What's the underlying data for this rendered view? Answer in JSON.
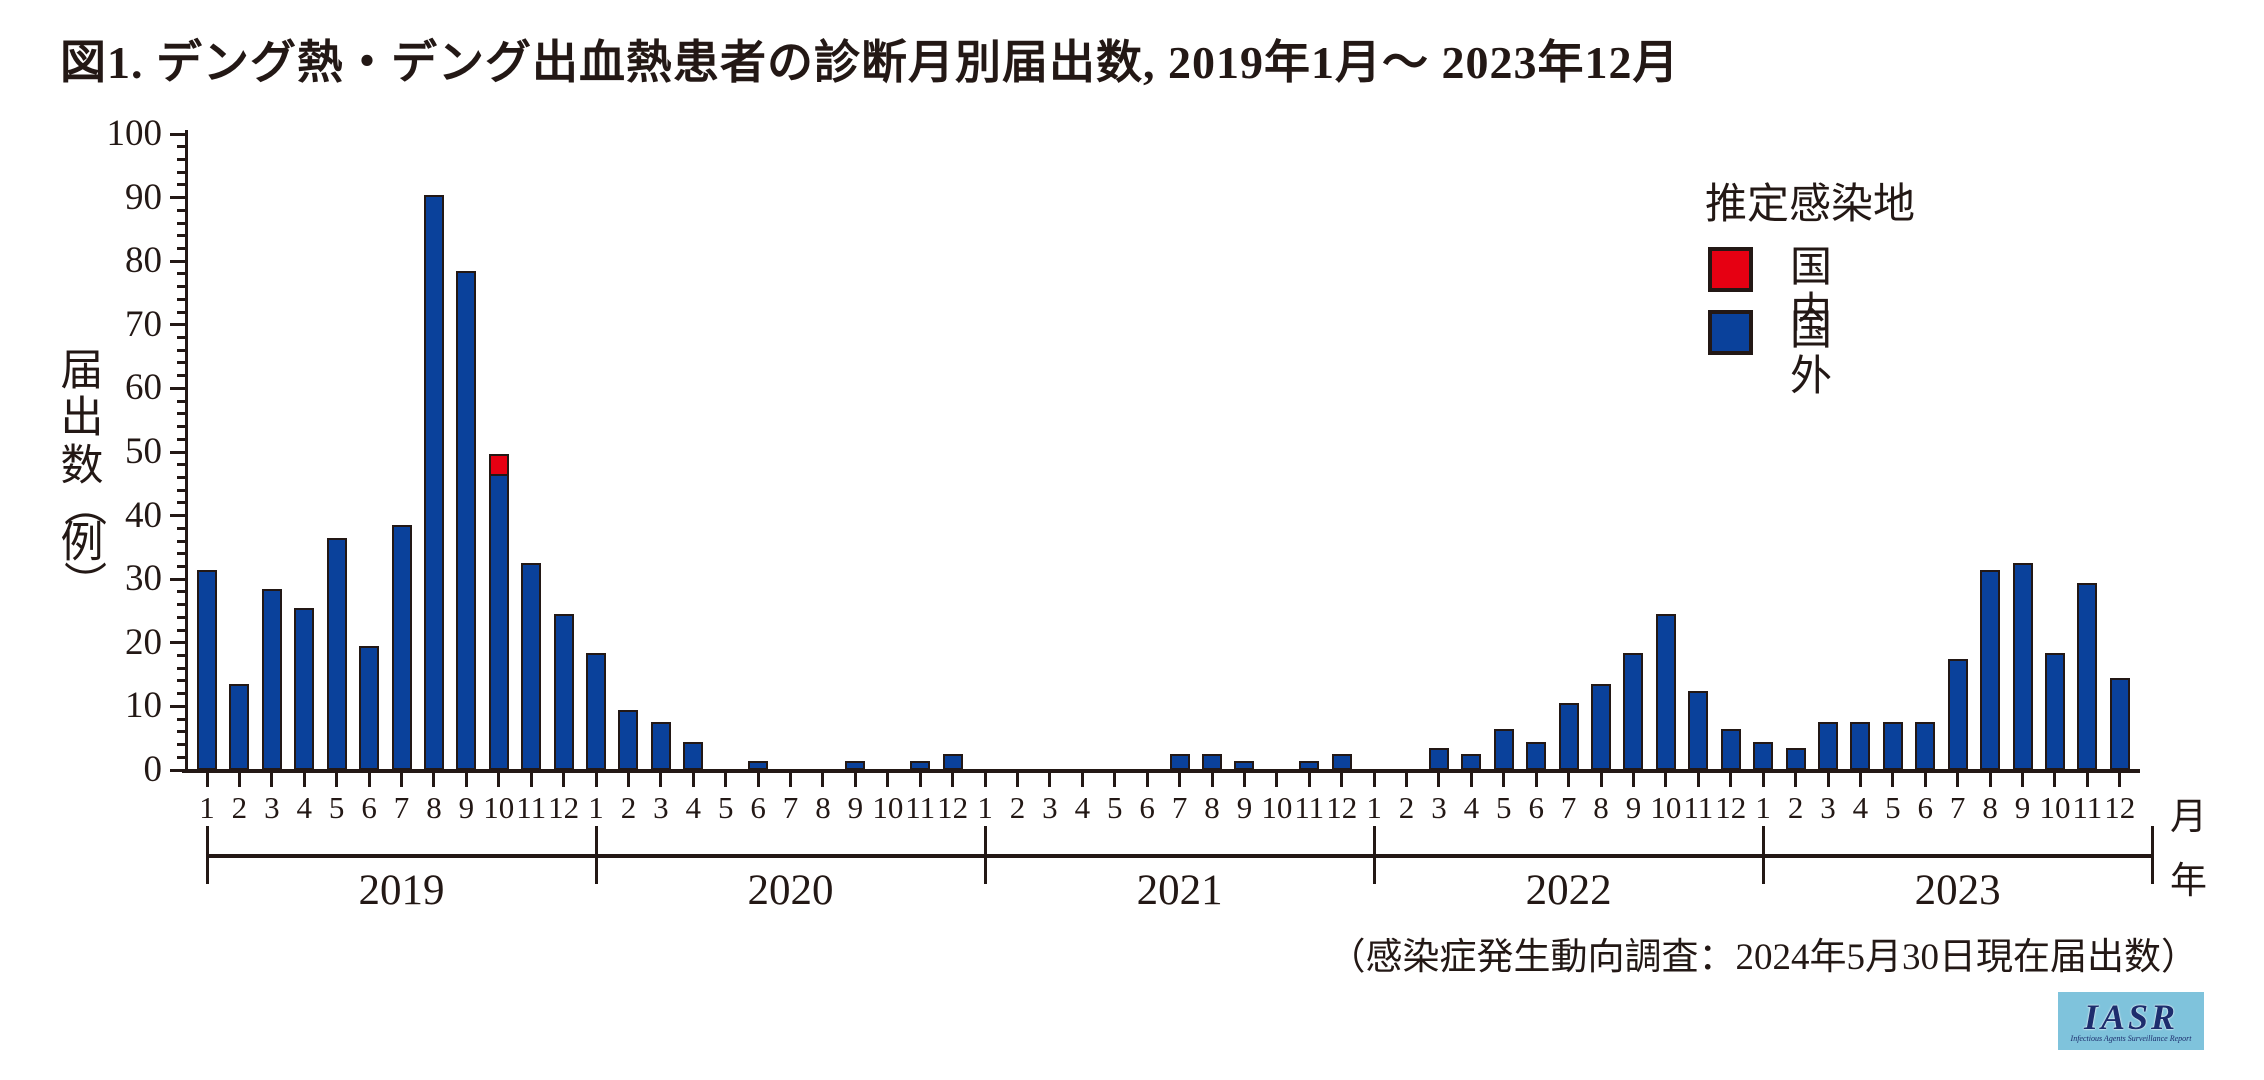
{
  "title": "図1. デング熱・デング出血熱患者の診断月別届出数, 2019年1月～ 2023年12月",
  "chart_data": {
    "type": "bar",
    "stacked": true,
    "title": "図1. デング熱・デング出血熱患者の診断月別届出数, 2019年1月～ 2023年12月",
    "ylabel": {
      "text": "届出数",
      "paren_open": "（",
      "unit": "例",
      "paren_close": "）"
    },
    "ylim": [
      0,
      100
    ],
    "ytick_major": 10,
    "ytick_minor": 2,
    "grid": false,
    "months": [
      "1",
      "2",
      "3",
      "4",
      "5",
      "6",
      "7",
      "8",
      "9",
      "10",
      "11",
      "12"
    ],
    "axis_unit_month": "月",
    "axis_unit_year": "年",
    "legend": {
      "title": "推定感染地",
      "items": [
        {
          "label": "国内",
          "color": "#e60012"
        },
        {
          "label": "国外",
          "color": "#0a419b"
        }
      ]
    },
    "years": [
      {
        "label": "2019",
        "imported": [
          31,
          13,
          28,
          25,
          36,
          19,
          38,
          90,
          78,
          46,
          32,
          24
        ],
        "domestic": [
          0,
          0,
          0,
          0,
          0,
          0,
          0,
          0,
          0,
          3,
          0,
          0
        ]
      },
      {
        "label": "2020",
        "imported": [
          18,
          9,
          7,
          4,
          0,
          1,
          0,
          0,
          1,
          0,
          1,
          2
        ],
        "domestic": [
          0,
          0,
          0,
          0,
          0,
          0,
          0,
          0,
          0,
          0,
          0,
          0
        ]
      },
      {
        "label": "2021",
        "imported": [
          0,
          0,
          0,
          0,
          0,
          0,
          2,
          2,
          1,
          0,
          1,
          2
        ],
        "domestic": [
          0,
          0,
          0,
          0,
          0,
          0,
          0,
          0,
          0,
          0,
          0,
          0
        ]
      },
      {
        "label": "2022",
        "imported": [
          0,
          0,
          3,
          2,
          6,
          4,
          10,
          13,
          18,
          24,
          12,
          6
        ],
        "domestic": [
          0,
          0,
          0,
          0,
          0,
          0,
          0,
          0,
          0,
          0,
          0,
          0
        ]
      },
      {
        "label": "2023",
        "imported": [
          4,
          3,
          7,
          7,
          7,
          7,
          17,
          31,
          32,
          18,
          29,
          14
        ],
        "domestic": [
          0,
          0,
          0,
          0,
          0,
          0,
          0,
          0,
          0,
          0,
          0,
          0
        ]
      }
    ],
    "note": "（感染症発生動向調査：2024年5月30日現在届出数）"
  },
  "colors": {
    "ink": "#231815",
    "bar_imported": "#0a419b",
    "bar_domestic": "#e60012",
    "logo_bg": "#7fc3dc",
    "logo_ink": "#1d2d6d"
  },
  "logo": {
    "text": "IASR",
    "subtext": "Infectious Agents Surveillance Report"
  }
}
